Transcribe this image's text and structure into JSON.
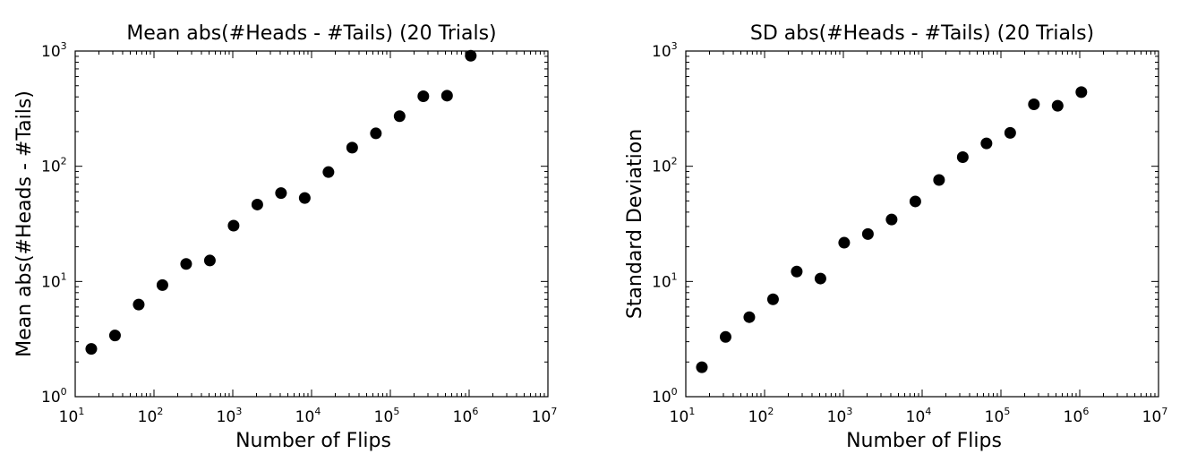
{
  "chart_data": [
    {
      "type": "scatter",
      "title": "Mean abs(#Heads - #Tails) (20 Trials)",
      "xlabel": "Number of Flips",
      "ylabel": "Mean abs(#Heads - #Tails)",
      "x_scale": "log",
      "y_scale": "log",
      "xlim": [
        10,
        10000000
      ],
      "ylim": [
        1,
        1000
      ],
      "grid": false,
      "x_ticks": [
        {
          "base": "10",
          "exp": "1"
        },
        {
          "base": "10",
          "exp": "2"
        },
        {
          "base": "10",
          "exp": "3"
        },
        {
          "base": "10",
          "exp": "4"
        },
        {
          "base": "10",
          "exp": "5"
        },
        {
          "base": "10",
          "exp": "6"
        },
        {
          "base": "10",
          "exp": "7"
        }
      ],
      "y_ticks": [
        {
          "base": "10",
          "exp": "0"
        },
        {
          "base": "10",
          "exp": "1"
        },
        {
          "base": "10",
          "exp": "2"
        },
        {
          "base": "10",
          "exp": "3"
        }
      ],
      "x": [
        16,
        32,
        64,
        128,
        256,
        512,
        1024,
        2048,
        4096,
        8192,
        16384,
        32768,
        65536,
        131072,
        262144,
        524288,
        1048576
      ],
      "y": [
        2.6,
        3.4,
        6.3,
        9.3,
        14.2,
        15.2,
        30.5,
        46.5,
        58.5,
        53,
        89,
        145,
        193,
        272,
        405,
        410,
        910
      ],
      "marker_color": "#000000"
    },
    {
      "type": "scatter",
      "title": "SD abs(#Heads - #Tails) (20 Trials)",
      "xlabel": "Number of Flips",
      "ylabel": "Standard Deviation",
      "x_scale": "log",
      "y_scale": "log",
      "xlim": [
        10,
        10000000
      ],
      "ylim": [
        1,
        1000
      ],
      "grid": false,
      "x_ticks": [
        {
          "base": "10",
          "exp": "1"
        },
        {
          "base": "10",
          "exp": "2"
        },
        {
          "base": "10",
          "exp": "3"
        },
        {
          "base": "10",
          "exp": "4"
        },
        {
          "base": "10",
          "exp": "5"
        },
        {
          "base": "10",
          "exp": "6"
        },
        {
          "base": "10",
          "exp": "7"
        }
      ],
      "y_ticks": [
        {
          "base": "10",
          "exp": "0"
        },
        {
          "base": "10",
          "exp": "1"
        },
        {
          "base": "10",
          "exp": "2"
        },
        {
          "base": "10",
          "exp": "3"
        }
      ],
      "x": [
        16,
        32,
        64,
        128,
        256,
        512,
        1024,
        2048,
        4096,
        8192,
        16384,
        32768,
        65536,
        131072,
        262144,
        524288,
        1048576
      ],
      "y": [
        1.8,
        3.3,
        4.9,
        7.0,
        12.2,
        10.6,
        21.7,
        25.8,
        34.5,
        49.5,
        76,
        120,
        158,
        195,
        345,
        335,
        440
      ],
      "marker_color": "#000000"
    }
  ]
}
